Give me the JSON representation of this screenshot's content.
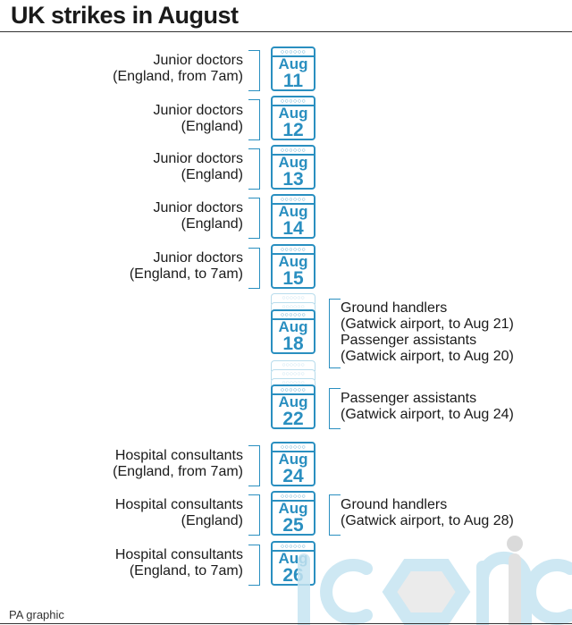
{
  "title": "UK strikes in August",
  "footer": "PA graphic",
  "month": "Aug",
  "accent_color": "#2a8fc0",
  "days": [
    {
      "day": "11",
      "left": [
        "Junior doctors",
        "(England, from 7am)"
      ],
      "right": []
    },
    {
      "day": "12",
      "left": [
        "Junior doctors",
        "(England)"
      ],
      "right": []
    },
    {
      "day": "13",
      "left": [
        "Junior doctors",
        "(England)"
      ],
      "right": []
    },
    {
      "day": "14",
      "left": [
        "Junior doctors",
        "(England)"
      ],
      "right": []
    },
    {
      "day": "15",
      "left": [
        "Junior doctors",
        "(England, to 7am)"
      ],
      "right": []
    },
    {
      "day": "18",
      "left": [],
      "right": [
        "Ground handlers",
        "(Gatwick airport, to Aug 21)",
        "Passenger assistants",
        "(Gatwick airport, to Aug 20)"
      ]
    },
    {
      "day": "22",
      "left": [],
      "right": [
        "Passenger assistants",
        "(Gatwick airport, to Aug 24)"
      ]
    },
    {
      "day": "24",
      "left": [
        "Hospital consultants",
        "(England, from 7am)"
      ],
      "right": []
    },
    {
      "day": "25",
      "left": [
        "Hospital consultants",
        "(England)"
      ],
      "right": [
        "Ground handlers",
        "(Gatwick airport, to Aug 28)"
      ]
    },
    {
      "day": "26",
      "left": [
        "Hospital consultants",
        "(England, to 7am)"
      ],
      "right": []
    }
  ],
  "watermark": "iconic"
}
